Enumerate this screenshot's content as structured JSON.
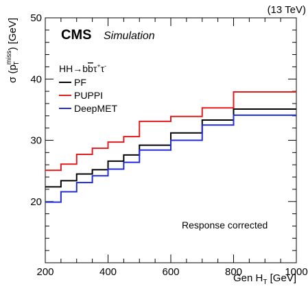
{
  "chart_data": {
    "type": "line",
    "x_bin_edges": [
      200,
      250,
      300,
      350,
      400,
      450,
      500,
      600,
      700,
      800,
      1000
    ],
    "series": [
      {
        "name": "PF",
        "color": "#000000",
        "values": [
          22.4,
          23.4,
          24.5,
          25.2,
          26.6,
          27.6,
          29.2,
          31.2,
          33.3,
          35.1
        ]
      },
      {
        "name": "PUPPI",
        "color": "#e31a1c",
        "values": [
          25.1,
          26.1,
          27.7,
          28.7,
          29.7,
          30.6,
          33.1,
          33.9,
          35.3,
          37.9
        ]
      },
      {
        "name": "DeepMET",
        "color": "#1f2bd6",
        "values": [
          19.9,
          21.6,
          23.1,
          24.2,
          25.3,
          26.4,
          28.4,
          30.0,
          32.5,
          34.1
        ]
      }
    ],
    "xlim": [
      200,
      1000
    ],
    "ylim": [
      10,
      50
    ],
    "x_ticks": [
      200,
      400,
      600,
      800,
      1000
    ],
    "y_ticks": [
      20,
      30,
      40,
      50
    ],
    "xlabel": {
      "main": "Gen H",
      "sub": "T",
      "unit": " [GeV]"
    },
    "ylabel": {
      "pre": "σ (p",
      "sup": "miss",
      "sub": "T",
      "post": ") [GeV]"
    },
    "energy_label": "(13 TeV)",
    "experiment_label": "CMS",
    "subtitle": "Simulation",
    "legend_header": {
      "pre": "HH→b",
      "bbar": "b",
      "tau1": "τ",
      "tau1_sup": "+",
      "tau2": "τ",
      "tau2_sup": "-"
    },
    "annotation": "Response corrected",
    "legend_placement": "upper-left",
    "grid": false
  }
}
